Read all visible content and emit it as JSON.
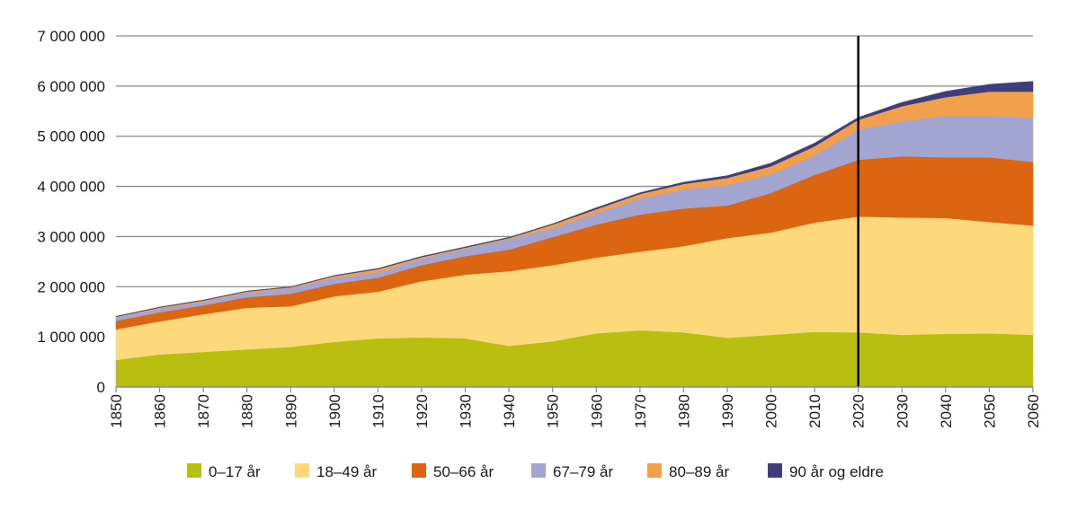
{
  "chart_data": {
    "type": "area",
    "stacked": true,
    "title": "",
    "xlabel": "",
    "ylabel": "",
    "x": [
      1850,
      1860,
      1870,
      1880,
      1890,
      1900,
      1910,
      1920,
      1930,
      1940,
      1950,
      1960,
      1970,
      1980,
      1990,
      2000,
      2010,
      2020,
      2030,
      2040,
      2050,
      2060
    ],
    "ylim": [
      0,
      7000000
    ],
    "yticks": [
      0,
      1000000,
      2000000,
      3000000,
      4000000,
      5000000,
      6000000,
      7000000
    ],
    "ytick_labels": [
      "0",
      "1 000 000",
      "2 000 000",
      "3 000 000",
      "4 000 000",
      "5 000 000",
      "6 000 000",
      "7 000 000"
    ],
    "xtick_labels": [
      "1850",
      "1860",
      "1870",
      "1880",
      "1890",
      "1900",
      "1910",
      "1920",
      "1930",
      "1940",
      "1950",
      "1960",
      "1970",
      "1980",
      "1990",
      "2000",
      "2010",
      "2020",
      "2030",
      "2040",
      "2050",
      "2060"
    ],
    "grid": "horizontal",
    "legend_position": "bottom",
    "marker_line_year": 2020,
    "series": [
      {
        "name": "0–17 år",
        "color": "#b8bf10",
        "values": [
          540000,
          650000,
          700000,
          750000,
          800000,
          900000,
          970000,
          990000,
          970000,
          820000,
          910000,
          1070000,
          1130000,
          1090000,
          980000,
          1040000,
          1100000,
          1090000,
          1040000,
          1060000,
          1070000,
          1040000
        ]
      },
      {
        "name": "18–49 år",
        "color": "#fdd97b",
        "values": [
          610000,
          660000,
          750000,
          830000,
          810000,
          910000,
          930000,
          1120000,
          1270000,
          1490000,
          1520000,
          1510000,
          1570000,
          1720000,
          1990000,
          2040000,
          2180000,
          2310000,
          2340000,
          2310000,
          2220000,
          2180000
        ]
      },
      {
        "name": "50–66 år",
        "color": "#dc6511",
        "values": [
          170000,
          180000,
          180000,
          210000,
          250000,
          250000,
          280000,
          320000,
          370000,
          430000,
          560000,
          660000,
          740000,
          750000,
          650000,
          790000,
          950000,
          1130000,
          1220000,
          1210000,
          1290000,
          1270000
        ]
      },
      {
        "name": "67–79 år",
        "color": "#a4a6d2",
        "values": [
          70000,
          70000,
          70000,
          90000,
          110000,
          120000,
          110000,
          130000,
          150000,
          210000,
          180000,
          230000,
          320000,
          380000,
          410000,
          370000,
          390000,
          610000,
          700000,
          830000,
          830000,
          880000
        ]
      },
      {
        "name": "80–89 år",
        "color": "#f3a04d",
        "values": [
          12000,
          25000,
          25000,
          25000,
          20000,
          35000,
          60000,
          30000,
          20000,
          20000,
          70000,
          75000,
          90000,
          110000,
          140000,
          160000,
          180000,
          190000,
          300000,
          370000,
          480000,
          520000
        ]
      },
      {
        "name": "90 år og eldre",
        "color": "#3f3d7b",
        "values": [
          3000,
          5000,
          5000,
          5000,
          5000,
          5000,
          10000,
          10000,
          10000,
          10000,
          10000,
          25000,
          20000,
          30000,
          40000,
          60000,
          60000,
          40000,
          70000,
          110000,
          140000,
          200000
        ]
      }
    ]
  }
}
